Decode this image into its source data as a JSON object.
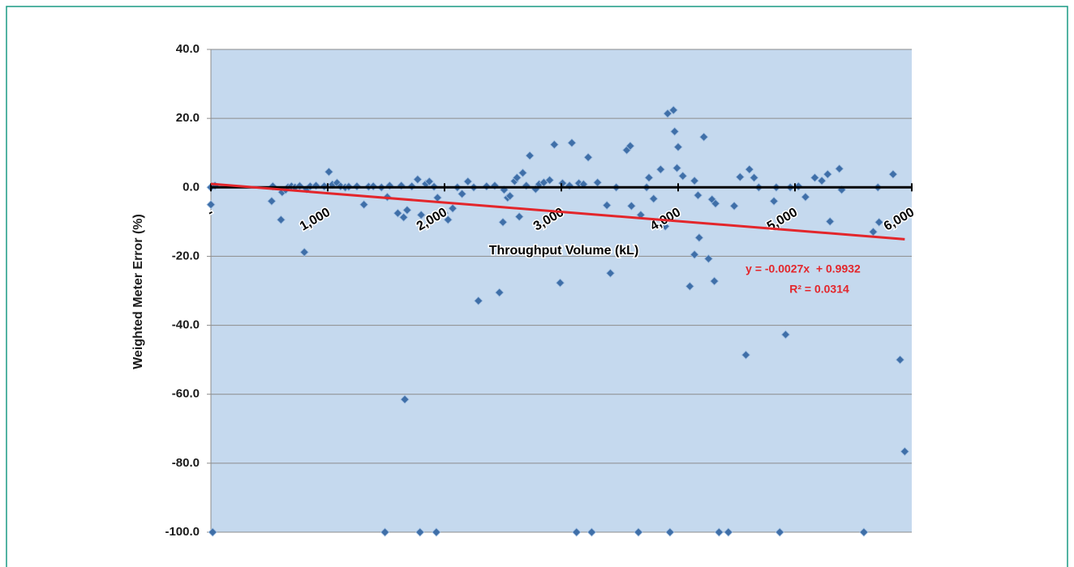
{
  "chart_data": {
    "type": "scatter",
    "x_label": "Throughput Volume (kL)",
    "y_label": "Weighted Meter Error (%)",
    "color": "#3f6fa8",
    "xlim": [
      0,
      6000
    ],
    "xticks": [
      {
        "value": 0,
        "label": "-"
      },
      {
        "value": 1000,
        "label": "1,000"
      },
      {
        "value": 2000,
        "label": "2,000"
      },
      {
        "value": 3000,
        "label": "3,000"
      },
      {
        "value": 4000,
        "label": "4,000"
      },
      {
        "value": 5000,
        "label": "5,000"
      },
      {
        "value": 6000,
        "label": "6,000"
      }
    ],
    "ylim": [
      -100,
      40
    ],
    "yticks": [
      {
        "value": -100,
        "label": "-100.0"
      },
      {
        "value": -80,
        "label": "-80.0"
      },
      {
        "value": -60,
        "label": "-60.0"
      },
      {
        "value": -40,
        "label": "-40.0"
      },
      {
        "value": -20,
        "label": "-20.0"
      },
      {
        "value": 0,
        "label": "0.0"
      },
      {
        "value": 20,
        "label": "20.0"
      },
      {
        "value": 40,
        "label": "40.0"
      }
    ],
    "grid": true,
    "x": [
      0,
      0,
      15,
      35,
      520,
      530,
      600,
      610,
      640,
      660,
      690,
      720,
      760,
      800,
      820,
      850,
      900,
      970,
      1010,
      1040,
      1080,
      1110,
      1150,
      1180,
      1250,
      1310,
      1350,
      1390,
      1460,
      1490,
      1510,
      1530,
      1600,
      1630,
      1650,
      1660,
      1680,
      1720,
      1770,
      1790,
      1800,
      1840,
      1870,
      1910,
      1930,
      1940,
      2000,
      2030,
      2070,
      2110,
      2150,
      2200,
      2250,
      2290,
      2360,
      2430,
      2470,
      2500,
      2510,
      2540,
      2560,
      2600,
      2620,
      2640,
      2670,
      2700,
      2730,
      2780,
      2810,
      2850,
      2900,
      2940,
      2990,
      3010,
      3070,
      3090,
      3130,
      3150,
      3190,
      3230,
      3260,
      3310,
      3390,
      3420,
      3470,
      3560,
      3590,
      3600,
      3660,
      3680,
      3730,
      3750,
      3790,
      3850,
      3890,
      3910,
      3930,
      3960,
      3970,
      3990,
      4000,
      4040,
      4100,
      4140,
      4140,
      4170,
      4180,
      4220,
      4260,
      4290,
      4310,
      4320,
      4350,
      4430,
      4480,
      4530,
      4580,
      4610,
      4650,
      4690,
      4820,
      4840,
      4870,
      4920,
      4960,
      5030,
      5090,
      5170,
      5230,
      5280,
      5300,
      5380,
      5400,
      5590,
      5670,
      5710,
      5720,
      5840,
      5900,
      5940
    ],
    "values": [
      0,
      -5,
      -100,
      0.5,
      -4,
      0.3,
      -9.4,
      -1.4,
      -0.7,
      0,
      0.3,
      0,
      0.4,
      -18.8,
      -0.5,
      0.3,
      0.5,
      0.3,
      4.5,
      0.8,
      1.3,
      0.3,
      0,
      0.2,
      0.3,
      -5,
      0.2,
      0.3,
      0,
      -100,
      -2.8,
      0.5,
      -7.5,
      0.5,
      -8.7,
      -61.5,
      -6.6,
      0.3,
      2.3,
      -100,
      -8,
      1,
      1.7,
      0.2,
      -100,
      -3,
      -7.5,
      -9.4,
      -6.1,
      0,
      -1.9,
      1.7,
      0,
      -32.9,
      0.3,
      0.5,
      -30.5,
      -10.1,
      -0.7,
      -3,
      -2.5,
      1.8,
      2.8,
      -8.5,
      4.2,
      0.5,
      9.2,
      -0.5,
      0.9,
      1.4,
      2.1,
      12.4,
      -27.7,
      1.2,
      0.5,
      12.9,
      -100,
      1.2,
      0.9,
      8.7,
      -100,
      1.4,
      -5.2,
      -24.9,
      0,
      10.8,
      12,
      -5.4,
      -100,
      -8,
      0,
      2.8,
      -3.3,
      5.2,
      -11.3,
      21.4,
      -100,
      22.4,
      16.2,
      5.6,
      11.7,
      3.3,
      -28.7,
      1.9,
      -19.5,
      -2.3,
      -14.6,
      14.6,
      -20.7,
      -3.5,
      -27.2,
      -4.7,
      -100,
      -100,
      -5.4,
      3,
      -48.6,
      5.2,
      2.8,
      0,
      -4,
      0,
      -100,
      -42.7,
      0,
      0.3,
      -2.8,
      2.8,
      1.9,
      3.8,
      -9.9,
      5.4,
      -0.7,
      -100,
      -12.9,
      0,
      -10.1,
      3.8,
      -50,
      -76.6
    ],
    "trendline": {
      "slope": -0.0027,
      "intercept": 0.9932,
      "color": "#e3262b",
      "equation": "y = -0.0027x  + 0.9932",
      "r2": "R² = 0.0314"
    }
  }
}
